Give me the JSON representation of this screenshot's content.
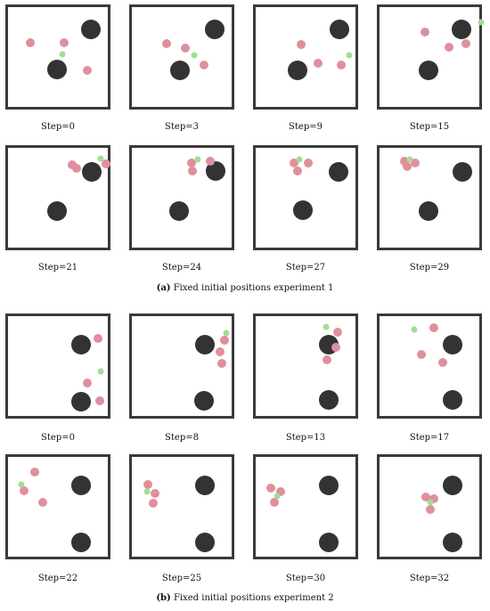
{
  "figure": {
    "subfigures": [
      {
        "caption_label": "(a)",
        "caption_text": "Fixed initial positions experiment 1",
        "panels": [
          {
            "label": "Step=0"
          },
          {
            "label": "Step=3"
          },
          {
            "label": "Step=9"
          },
          {
            "label": "Step=15"
          },
          {
            "label": "Step=21"
          },
          {
            "label": "Step=24"
          },
          {
            "label": "Step=27"
          },
          {
            "label": "Step=29"
          }
        ]
      },
      {
        "caption_label": "(b)",
        "caption_text": "Fixed initial positions experiment 2",
        "panels": [
          {
            "label": "Step=0"
          },
          {
            "label": "Step=8"
          },
          {
            "label": "Step=13"
          },
          {
            "label": "Step=17"
          },
          {
            "label": "Step=22"
          },
          {
            "label": "Step=25"
          },
          {
            "label": "Step=30"
          },
          {
            "label": "Step=32"
          }
        ]
      }
    ],
    "legend_colors": {
      "obstacle": "#333333",
      "agent": "#e08f9c",
      "target": "#9fe08f"
    }
  }
}
